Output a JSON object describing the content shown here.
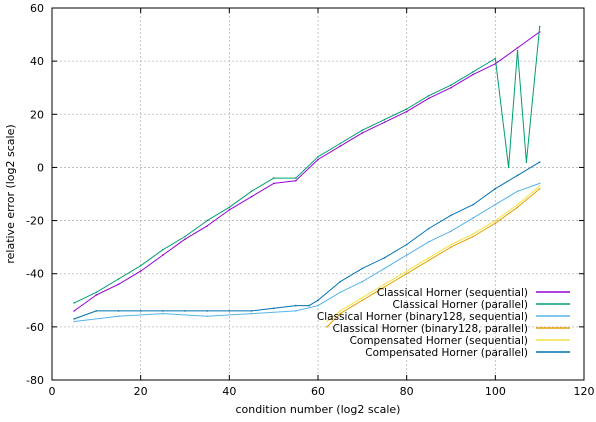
{
  "chart_data": {
    "type": "line",
    "xlabel": "condition number (log2 scale)",
    "ylabel": "relative error (log2 scale)",
    "xlim": [
      0,
      120
    ],
    "ylim": [
      -80,
      60
    ],
    "xticks": [
      0,
      20,
      40,
      60,
      80,
      100,
      120
    ],
    "yticks": [
      -80,
      -60,
      -40,
      -20,
      0,
      20,
      40,
      60
    ],
    "grid": true,
    "legend_position": "bottom-right",
    "series": [
      {
        "name": "Classical Horner (sequential)",
        "color": "#9400d3",
        "x": [
          5,
          10,
          15,
          20,
          25,
          30,
          35,
          40,
          45,
          50,
          55,
          60,
          65,
          70,
          75,
          80,
          85,
          90,
          95,
          100,
          105,
          110
        ],
        "y": [
          -54,
          -48,
          -44,
          -39,
          -33,
          -27,
          -22,
          -16,
          -11,
          -6,
          -5,
          3,
          8,
          13,
          17,
          21,
          26,
          30,
          35,
          39,
          45,
          51
        ]
      },
      {
        "name": "Classical Horner (parallel)",
        "color": "#009e73",
        "x": [
          5,
          10,
          15,
          20,
          25,
          30,
          35,
          40,
          45,
          50,
          55,
          60,
          65,
          70,
          75,
          80,
          85,
          90,
          95,
          100,
          103,
          105,
          107,
          110
        ],
        "y": [
          -51,
          -47,
          -42,
          -37,
          -31,
          -26,
          -20,
          -15,
          -9,
          -4,
          -4,
          4,
          9,
          14,
          18,
          22,
          27,
          31,
          36,
          41,
          0,
          44,
          2,
          53
        ]
      },
      {
        "name": "Classical Horner (binary128, sequential)",
        "color": "#56b4e9",
        "x": [
          5,
          15,
          25,
          35,
          45,
          55,
          60,
          65,
          70,
          75,
          80,
          85,
          90,
          95,
          100,
          105,
          110
        ],
        "y": [
          -58,
          -56,
          -55,
          -56,
          -55,
          -54,
          -52,
          -47,
          -43,
          -38,
          -33,
          -28,
          -24,
          -19,
          -14,
          -9,
          -6
        ]
      },
      {
        "name": "Classical Horner (binary128, parallel)",
        "color": "#e69f00",
        "x": [
          62,
          65,
          70,
          75,
          80,
          85,
          90,
          95,
          100,
          105,
          110
        ],
        "y": [
          -60,
          -55,
          -50,
          -45,
          -40,
          -35,
          -30,
          -26,
          -21,
          -15,
          -8
        ]
      },
      {
        "name": "Compensated Horner (sequential)",
        "color": "#f0e442",
        "x": [
          62,
          65,
          70,
          75,
          80,
          85,
          90,
          95,
          100,
          105,
          110
        ],
        "y": [
          -58,
          -54,
          -49,
          -44,
          -39,
          -34,
          -29,
          -25,
          -20,
          -14,
          -7
        ]
      },
      {
        "name": "Compensated Horner (parallel)",
        "color": "#0072b2",
        "x": [
          5,
          10,
          15,
          20,
          25,
          30,
          35,
          40,
          45,
          50,
          55,
          58,
          60,
          65,
          70,
          75,
          80,
          85,
          90,
          95,
          100,
          105,
          110
        ],
        "y": [
          -57,
          -54,
          -54,
          -54,
          -54,
          -54,
          -54,
          -54,
          -54,
          -53,
          -52,
          -52,
          -50,
          -43,
          -38,
          -34,
          -29,
          -23,
          -18,
          -14,
          -8,
          -3,
          2
        ]
      }
    ]
  }
}
